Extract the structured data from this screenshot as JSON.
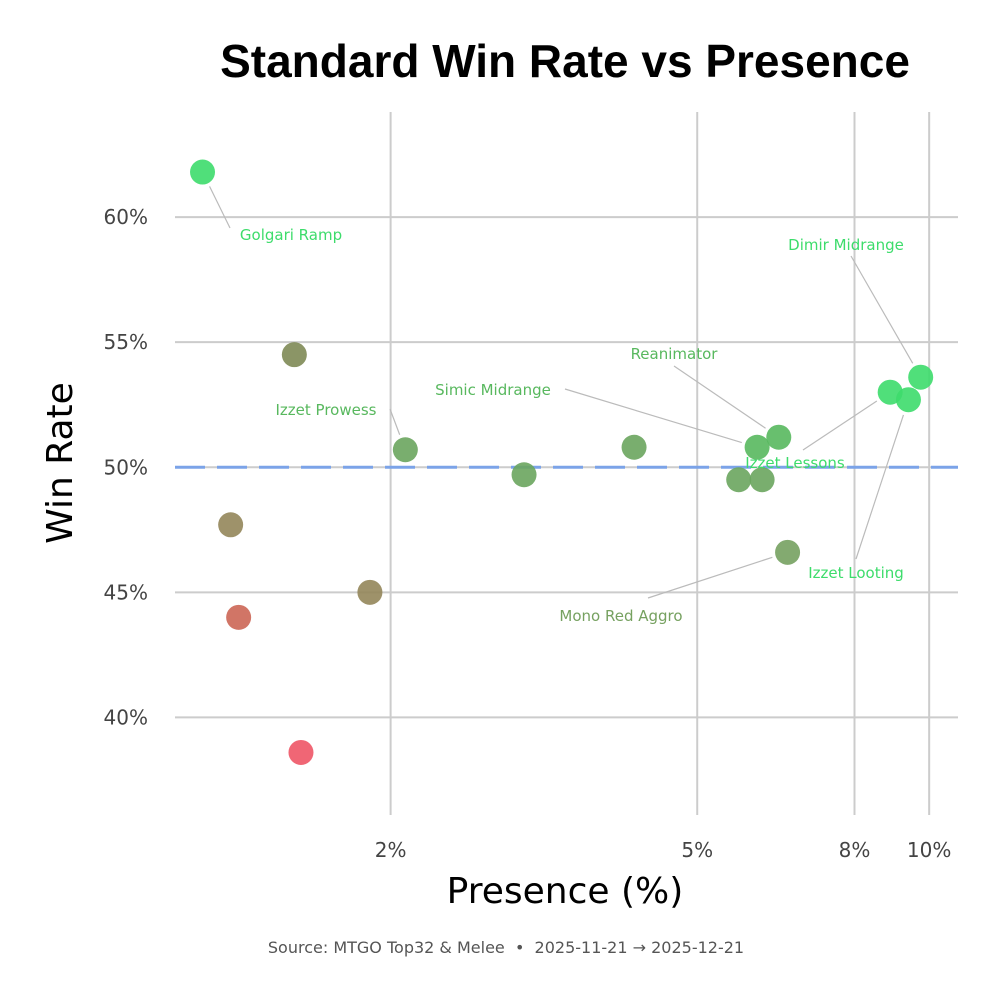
{
  "chart_data": {
    "type": "scatter",
    "title": "Standard Win Rate vs Presence",
    "xlabel": "Presence (%)",
    "ylabel": "Win Rate",
    "x_scale": "log",
    "x_ticks": [
      2,
      5,
      8,
      10
    ],
    "x_tick_labels": [
      "2%",
      "5%",
      "8%",
      "10%"
    ],
    "xlim": [
      1.05,
      10.9
    ],
    "y_ticks": [
      40,
      45,
      50,
      55,
      60
    ],
    "y_tick_labels": [
      "40%",
      "45%",
      "50%",
      "55%",
      "60%"
    ],
    "ylim": [
      36.1,
      64.2
    ],
    "grid": true,
    "reference_line": {
      "y": 50,
      "style": "dashed",
      "color": "#7ba3e8"
    },
    "caption": "Source: MTGO Top32 & Melee  •  2025-11-21 → 2025-12-21",
    "points": [
      {
        "x": 1.14,
        "y": 61.8,
        "label": "Golgari Ramp",
        "color": "#3ddc6b"
      },
      {
        "x": 1.5,
        "y": 54.5,
        "label": "",
        "color": "#7e8a55"
      },
      {
        "x": 1.24,
        "y": 47.7,
        "label": "",
        "color": "#94865a"
      },
      {
        "x": 1.27,
        "y": 44.0,
        "label": "",
        "color": "#cc6655"
      },
      {
        "x": 1.53,
        "y": 38.6,
        "label": "",
        "color": "#ee5566"
      },
      {
        "x": 1.88,
        "y": 45.0,
        "label": "",
        "color": "#94865a"
      },
      {
        "x": 2.09,
        "y": 50.7,
        "label": "Izzet Prowess",
        "color": "#6aa55e"
      },
      {
        "x": 2.98,
        "y": 49.7,
        "label": "",
        "color": "#6aa55e"
      },
      {
        "x": 4.14,
        "y": 50.8,
        "label": "",
        "color": "#6aa55e"
      },
      {
        "x": 5.98,
        "y": 50.8,
        "label": "Simic Midrange",
        "color": "#58b85e"
      },
      {
        "x": 6.38,
        "y": 51.2,
        "label": "Reanimator",
        "color": "#58b85e"
      },
      {
        "x": 5.66,
        "y": 49.5,
        "label": "",
        "color": "#6aa55e"
      },
      {
        "x": 6.07,
        "y": 49.5,
        "label": "",
        "color": "#6aa55e"
      },
      {
        "x": 6.55,
        "y": 46.6,
        "label": "Mono Red Aggro",
        "color": "#76a160"
      },
      {
        "x": 8.9,
        "y": 53.0,
        "label": "Izzet Lessons",
        "color": "#3ddc6b"
      },
      {
        "x": 9.4,
        "y": 52.7,
        "label": "Izzet Looting",
        "color": "#3ddc6b"
      },
      {
        "x": 9.75,
        "y": 53.6,
        "label": "Dimir Midrange",
        "color": "#3ddc6b"
      }
    ],
    "annotations": [
      {
        "text": "Golgari Ramp",
        "point": 0,
        "color": "#3ddc6b"
      },
      {
        "text": "Izzet Prowess",
        "point": 6,
        "color": "#58b85e"
      },
      {
        "text": "Simic Midrange",
        "point": 9,
        "color": "#58b85e"
      },
      {
        "text": "Reanimator",
        "point": 10,
        "color": "#58b85e"
      },
      {
        "text": "Dimir Midrange",
        "point": 16,
        "color": "#3ddc6b"
      },
      {
        "text": "Izzet Lessons",
        "point": 14,
        "color": "#3ddc6b"
      },
      {
        "text": "Izzet Looting",
        "point": 15,
        "color": "#3ddc6b"
      },
      {
        "text": "Mono Red Aggro",
        "point": 13,
        "color": "#76a160"
      }
    ]
  }
}
